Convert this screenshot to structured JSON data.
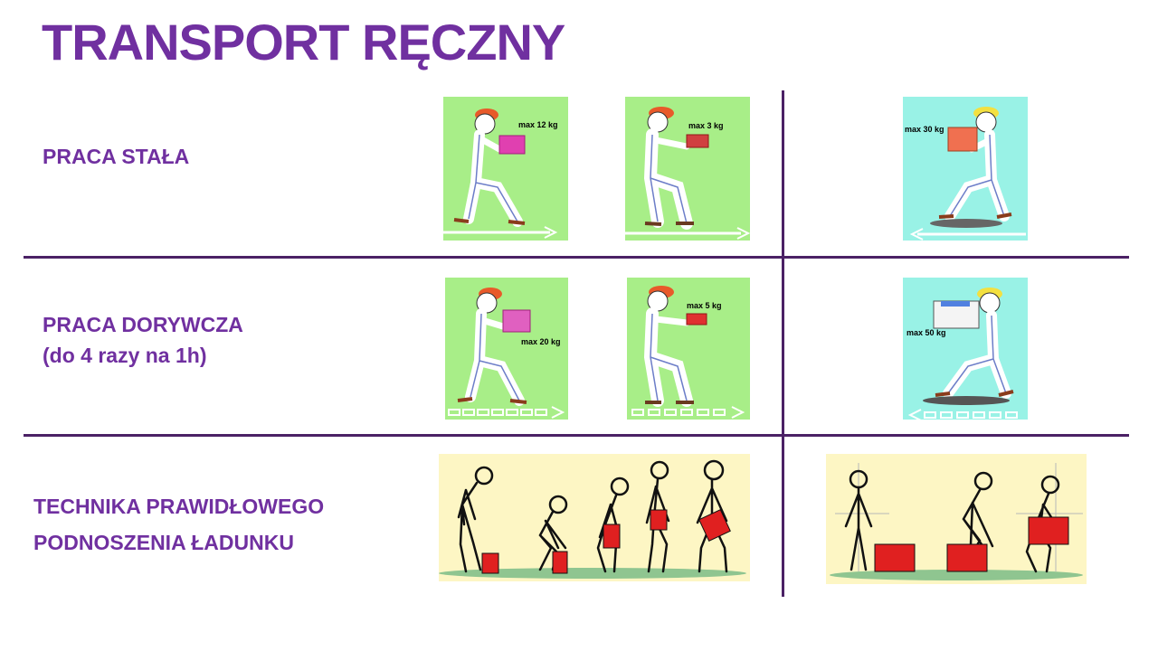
{
  "title": "TRANSPORT RĘCZNY",
  "rows": [
    {
      "label_line1": "PRACA STAŁA",
      "label_line2": ""
    },
    {
      "label_line1": "PRACA DORYWCZA",
      "label_line2": "(do 4 razy na 1h)"
    },
    {
      "label_line1": "TECHNIKA PRAWIDŁOWEGO",
      "label_line2": "PODNOSZENIA ŁADUNKU"
    }
  ],
  "tiles": {
    "stala_1": {
      "weight": "max 12 kg"
    },
    "stala_2": {
      "weight": "max 3 kg"
    },
    "stala_3": {
      "weight": "max 30 kg"
    },
    "dorywcza_1": {
      "weight": "max 20 kg"
    },
    "dorywcza_2": {
      "weight": "max 5 kg"
    },
    "dorywcza_3": {
      "weight": "max 50 kg"
    }
  },
  "colors": {
    "title": "#7030a0",
    "divider": "#4b2165",
    "tile_green": "#a8ee88",
    "tile_cyan": "#99f2e6",
    "tile_yellow": "#fdf6c4",
    "box_red": "#e02020"
  }
}
